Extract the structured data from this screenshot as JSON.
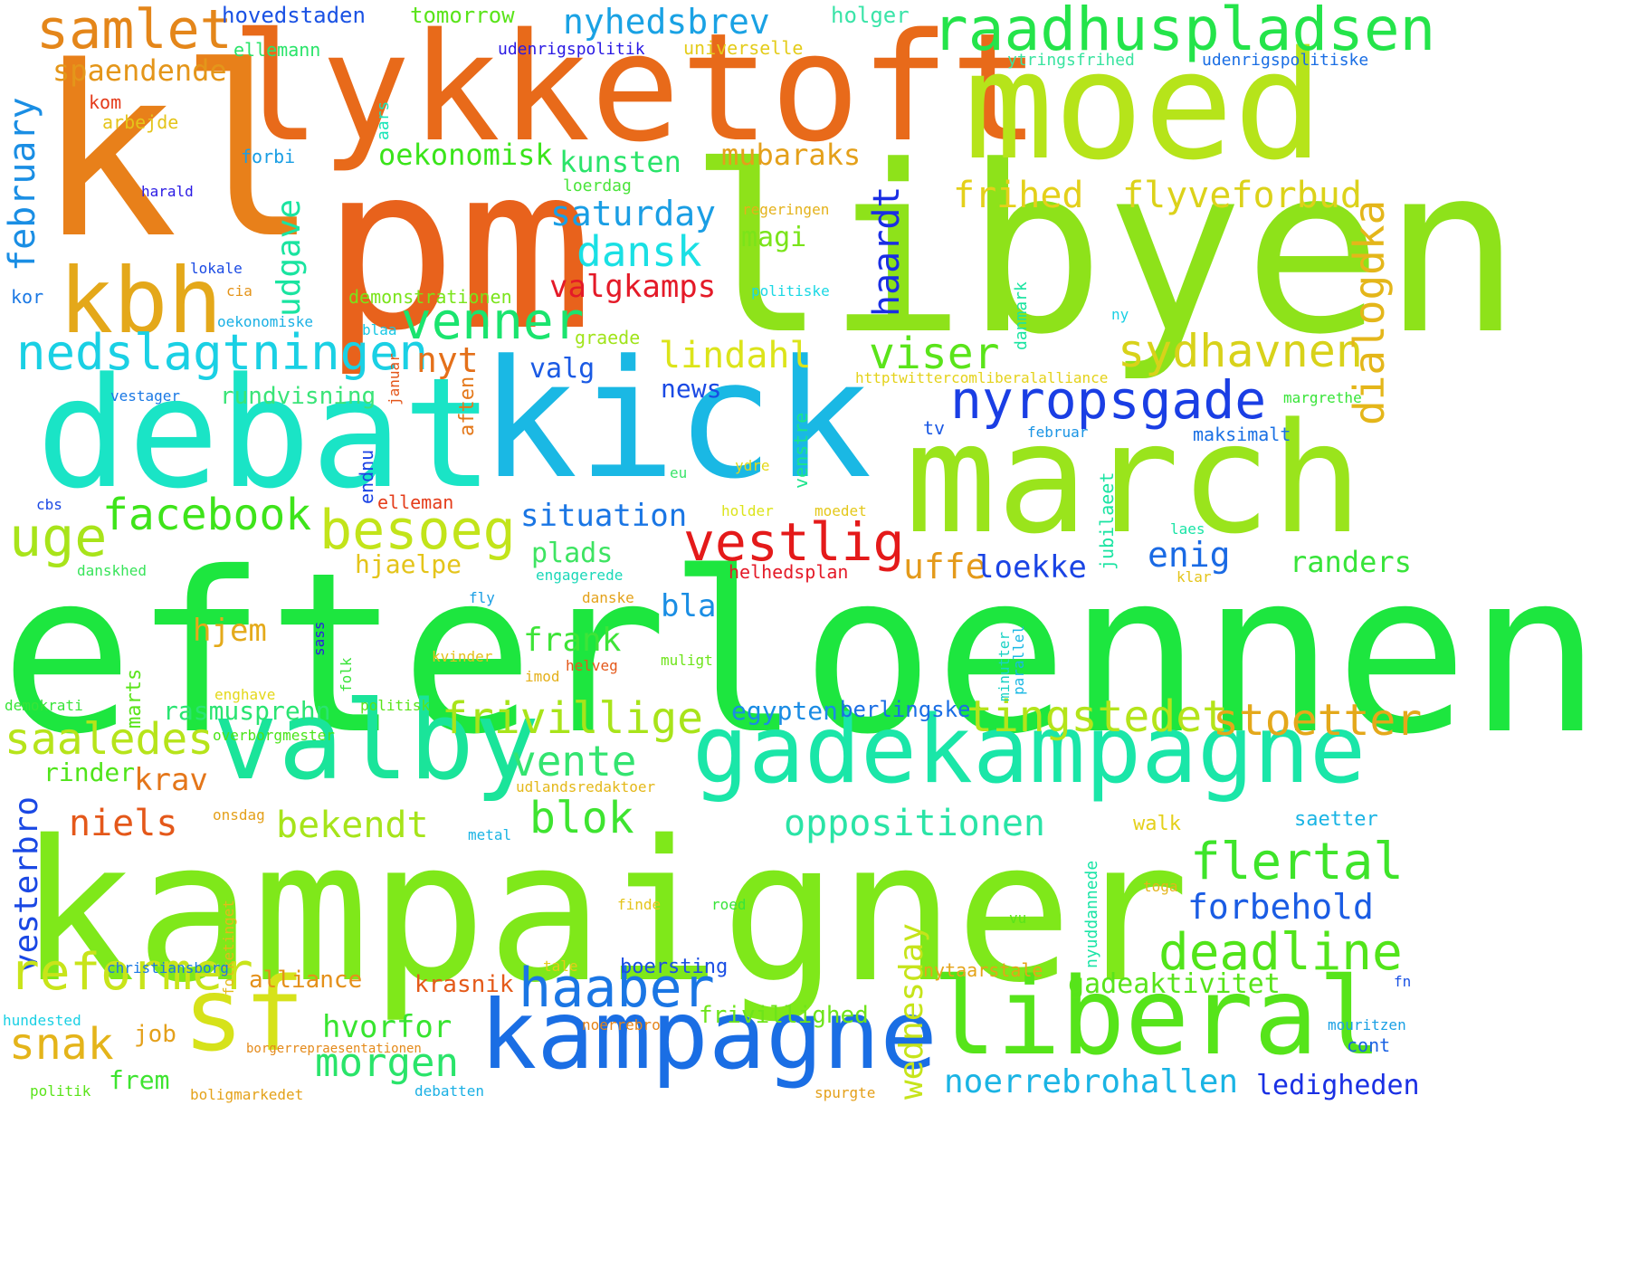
{
  "word_cloud": {
    "words": [
      {
        "text": "efterloennen",
        "color": "#1de63f"
      },
      {
        "text": "kampaigner",
        "color": "#7fe81a"
      },
      {
        "text": "kl",
        "color": "#e8801a"
      },
      {
        "text": "pm",
        "color": "#e8621c"
      },
      {
        "text": "libyen",
        "color": "#8ee21a"
      },
      {
        "text": "lykketoft",
        "color": "#e86a1a"
      },
      {
        "text": "moed",
        "color": "#b6e41a"
      },
      {
        "text": "kick",
        "color": "#1ab8e4"
      },
      {
        "text": "march",
        "color": "#9ae41c"
      },
      {
        "text": "debat",
        "color": "#1ae4c6"
      },
      {
        "text": "valby",
        "color": "#1ae49a"
      },
      {
        "text": "gadekampagne",
        "color": "#1ae6a8"
      },
      {
        "text": "kampagne",
        "color": "#1a6ee4"
      },
      {
        "text": "liberal",
        "color": "#56e41a"
      },
      {
        "text": "sf",
        "color": "#d6e21a"
      },
      {
        "text": "raadhuspladsen",
        "color": "#24e44a"
      },
      {
        "text": "kbh",
        "color": "#e4a81a"
      },
      {
        "text": "samlet",
        "color": "#e4861a"
      },
      {
        "text": "nyropsgade",
        "color": "#1a3ee4"
      },
      {
        "text": "vestlig",
        "color": "#e41a1a"
      },
      {
        "text": "venner",
        "color": "#1ae46e"
      },
      {
        "text": "nedslagtningen",
        "color": "#1ad0e4"
      },
      {
        "text": "besoeg",
        "color": "#c2e41a"
      },
      {
        "text": "uge",
        "color": "#a8e41a"
      },
      {
        "text": "facebook",
        "color": "#3ee41a"
      },
      {
        "text": "viser",
        "color": "#5ae41a"
      },
      {
        "text": "sydhavnen",
        "color": "#d8d21a"
      },
      {
        "text": "dialogdka",
        "color": "#e4b61a"
      },
      {
        "text": "frihed",
        "color": "#e4d01a"
      },
      {
        "text": "flyveforbud",
        "color": "#dcd21a"
      },
      {
        "text": "haardt",
        "color": "#1a2ee4"
      },
      {
        "text": "udgave",
        "color": "#1ae4a0"
      },
      {
        "text": "february",
        "color": "#1a8ee4"
      },
      {
        "text": "nyhedsbrev",
        "color": "#1aa2e4"
      },
      {
        "text": "spaendende",
        "color": "#e4961a"
      },
      {
        "text": "oekonomisk",
        "color": "#3ae41a"
      },
      {
        "text": "kunsten",
        "color": "#2ae46a"
      },
      {
        "text": "mubaraks",
        "color": "#e4a01a"
      },
      {
        "text": "saturday",
        "color": "#1a9ee4"
      },
      {
        "text": "dansk",
        "color": "#1ae0e4"
      },
      {
        "text": "magi",
        "color": "#7ae41a"
      },
      {
        "text": "valgkamps",
        "color": "#e41a28"
      },
      {
        "text": "lindahl",
        "color": "#dce41a"
      },
      {
        "text": "valg",
        "color": "#1a5ae4"
      },
      {
        "text": "nyt",
        "color": "#e4701a"
      },
      {
        "text": "rundvisning",
        "color": "#3ae478"
      },
      {
        "text": "news",
        "color": "#1a4ae4"
      },
      {
        "text": "situation",
        "color": "#1a76e4"
      },
      {
        "text": "enig",
        "color": "#1a6ae4"
      },
      {
        "text": "uffe",
        "color": "#e49a1a"
      },
      {
        "text": "loekke",
        "color": "#1a44e4"
      },
      {
        "text": "randers",
        "color": "#38e43a"
      },
      {
        "text": "plads",
        "color": "#3ee462"
      },
      {
        "text": "hjaelpe",
        "color": "#e4c41a"
      },
      {
        "text": "hjem",
        "color": "#e4aa1a"
      },
      {
        "text": "frank",
        "color": "#3ee438"
      },
      {
        "text": "bla",
        "color": "#1a8ee4"
      },
      {
        "text": "frivillige",
        "color": "#a8e41a"
      },
      {
        "text": "tingstedet",
        "color": "#b4e41a"
      },
      {
        "text": "stoetter",
        "color": "#e4a81a"
      },
      {
        "text": "saaledes",
        "color": "#b6e41a"
      },
      {
        "text": "vente",
        "color": "#34e470"
      },
      {
        "text": "egypten",
        "color": "#1a8ce4"
      },
      {
        "text": "berlingske",
        "color": "#1a6ee4"
      },
      {
        "text": "rasmusprehn",
        "color": "#2ae472"
      },
      {
        "text": "krav",
        "color": "#e4761a"
      },
      {
        "text": "rinder",
        "color": "#50e41a"
      },
      {
        "text": "niels",
        "color": "#e4581a"
      },
      {
        "text": "bekendt",
        "color": "#a6e41a"
      },
      {
        "text": "blok",
        "color": "#3ee430"
      },
      {
        "text": "oppositionen",
        "color": "#2ae4a6"
      },
      {
        "text": "flertal",
        "color": "#3ee42a"
      },
      {
        "text": "forbehold",
        "color": "#1a5ce4"
      },
      {
        "text": "deadline",
        "color": "#52e41a"
      },
      {
        "text": "vesterbro",
        "color": "#1a48e4"
      },
      {
        "text": "reformer",
        "color": "#c8e41a"
      },
      {
        "text": "haaber",
        "color": "#1a76e4"
      },
      {
        "text": "snak",
        "color": "#e4b41a"
      },
      {
        "text": "alliance",
        "color": "#e4901a"
      },
      {
        "text": "krasnik",
        "color": "#e45a1a"
      },
      {
        "text": "gadeaktivitet",
        "color": "#58e41a"
      },
      {
        "text": "hvorfor",
        "color": "#38e430"
      },
      {
        "text": "morgen",
        "color": "#2ae46a"
      },
      {
        "text": "frivillighed",
        "color": "#6ee41a"
      },
      {
        "text": "noerrebrohallen",
        "color": "#1ab4e4"
      },
      {
        "text": "ledigheden",
        "color": "#1a30e4"
      },
      {
        "text": "wednesday",
        "color": "#c6e41a"
      },
      {
        "text": "boersting",
        "color": "#1a4ee4"
      },
      {
        "text": "job",
        "color": "#e4a01a"
      },
      {
        "text": "frem",
        "color": "#3ee430"
      },
      {
        "text": "hovedstaden",
        "color": "#1a52e4"
      },
      {
        "text": "tomorrow",
        "color": "#5ae41a"
      },
      {
        "text": "holger",
        "color": "#3ae4a8"
      },
      {
        "text": "ellemann",
        "color": "#2ae46a"
      },
      {
        "text": "udenrigspolitik",
        "color": "#2a1ae4"
      },
      {
        "text": "universelle",
        "color": "#e4cc1a"
      },
      {
        "text": "ytringsfrihed",
        "color": "#3ae4a0"
      },
      {
        "text": "udenrigspolitiske",
        "color": "#1a6ee4"
      },
      {
        "text": "kom",
        "color": "#e43a1a"
      },
      {
        "text": "arbejde",
        "color": "#e4c41a"
      },
      {
        "text": "aars",
        "color": "#1ae4b8"
      },
      {
        "text": "forbi",
        "color": "#1a9ee4"
      },
      {
        "text": "harald",
        "color": "#2a1ae4"
      },
      {
        "text": "loerdag",
        "color": "#4ae43a"
      },
      {
        "text": "regeringen",
        "color": "#e4b21a"
      },
      {
        "text": "lokale",
        "color": "#1a4ae4"
      },
      {
        "text": "cia",
        "color": "#e4941a"
      },
      {
        "text": "kor",
        "color": "#1a78e4"
      },
      {
        "text": "demonstrationen",
        "color": "#7ae41a"
      },
      {
        "text": "politiske",
        "color": "#1ad8e4"
      },
      {
        "text": "oekonomiske",
        "color": "#1ab0e4"
      },
      {
        "text": "blaa",
        "color": "#1ac8e4"
      },
      {
        "text": "danmark",
        "color": "#1ae4a0"
      },
      {
        "text": "ny",
        "color": "#1ad0e4"
      },
      {
        "text": "januar",
        "color": "#e4561a"
      },
      {
        "text": "graede",
        "color": "#a0e41a"
      },
      {
        "text": "httptwittercomliberalalliance",
        "color": "#e4d21a"
      },
      {
        "text": "vestager",
        "color": "#1a78e4"
      },
      {
        "text": "aften",
        "color": "#e4781a"
      },
      {
        "text": "venstre",
        "color": "#1ae48c"
      },
      {
        "text": "margrethe",
        "color": "#38e438"
      },
      {
        "text": "tv",
        "color": "#1a58e4"
      },
      {
        "text": "februar",
        "color": "#1a94e4"
      },
      {
        "text": "maksimalt",
        "color": "#1a70e4"
      },
      {
        "text": "endnu",
        "color": "#1a42e4"
      },
      {
        "text": "eu",
        "color": "#3ae46a"
      },
      {
        "text": "ydre",
        "color": "#e4d81a"
      },
      {
        "text": "jubilaeet",
        "color": "#1ae4a2"
      },
      {
        "text": "cbs",
        "color": "#1a48e4"
      },
      {
        "text": "elleman",
        "color": "#e43c1a"
      },
      {
        "text": "holder",
        "color": "#dce41a"
      },
      {
        "text": "moedet",
        "color": "#e4c81a"
      },
      {
        "text": "laes",
        "color": "#1ae4a6"
      },
      {
        "text": "klar",
        "color": "#e4c41a"
      },
      {
        "text": "danskhed",
        "color": "#38e45a"
      },
      {
        "text": "engagerede",
        "color": "#1ad8b8"
      },
      {
        "text": "helhedsplan",
        "color": "#e41a28"
      },
      {
        "text": "fly",
        "color": "#1a9ee4"
      },
      {
        "text": "danske",
        "color": "#e4a21a"
      },
      {
        "text": "sass",
        "color": "#2a1ae4"
      },
      {
        "text": "minutter",
        "color": "#1ad2c4"
      },
      {
        "text": "parallel",
        "color": "#1ab8e4"
      },
      {
        "text": "marts",
        "color": "#5ae41a"
      },
      {
        "text": "kvinder",
        "color": "#e4c01a"
      },
      {
        "text": "muligt",
        "color": "#6ee41a"
      },
      {
        "text": "imod",
        "color": "#e4b01a"
      },
      {
        "text": "helveg",
        "color": "#e4581a"
      },
      {
        "text": "enghave",
        "color": "#e4d81a"
      },
      {
        "text": "folk",
        "color": "#3ae43a"
      },
      {
        "text": "demokrati",
        "color": "#38e438"
      },
      {
        "text": "politisk",
        "color": "#5ae41a"
      },
      {
        "text": "overborgmester",
        "color": "#4ae41a"
      },
      {
        "text": "udlandsredaktoer",
        "color": "#e4b81a"
      },
      {
        "text": "onsdag",
        "color": "#e4a01a"
      },
      {
        "text": "metal",
        "color": "#1ab4e4"
      },
      {
        "text": "walk",
        "color": "#e4d01a"
      },
      {
        "text": "saetter",
        "color": "#1ab4e4"
      },
      {
        "text": "nyuddannede",
        "color": "#1ae4a6"
      },
      {
        "text": "finde",
        "color": "#e4c41a"
      },
      {
        "text": "roed",
        "color": "#38e43a"
      },
      {
        "text": "toga",
        "color": "#e4b41a"
      },
      {
        "text": "vu",
        "color": "#5ae41a"
      },
      {
        "text": "folketinget",
        "color": "#e4ba1a"
      },
      {
        "text": "christiansborg",
        "color": "#1a78e4"
      },
      {
        "text": "tale",
        "color": "#e4cc1a"
      },
      {
        "text": "nytaarstale",
        "color": "#e4a41a"
      },
      {
        "text": "fn",
        "color": "#1a52e4"
      },
      {
        "text": "hundested",
        "color": "#1ad0e4"
      },
      {
        "text": "noerrebro",
        "color": "#e4841a"
      },
      {
        "text": "borgerrepraesentationen",
        "color": "#e48a1a"
      },
      {
        "text": "mouritzen",
        "color": "#1aa0e4"
      },
      {
        "text": "cont",
        "color": "#1a62e4"
      },
      {
        "text": "politik",
        "color": "#5ae41a"
      },
      {
        "text": "boligmarkedet",
        "color": "#e4a21a"
      },
      {
        "text": "debatten",
        "color": "#1ab0e4"
      },
      {
        "text": "spurgte",
        "color": "#e4a01a"
      }
    ]
  }
}
